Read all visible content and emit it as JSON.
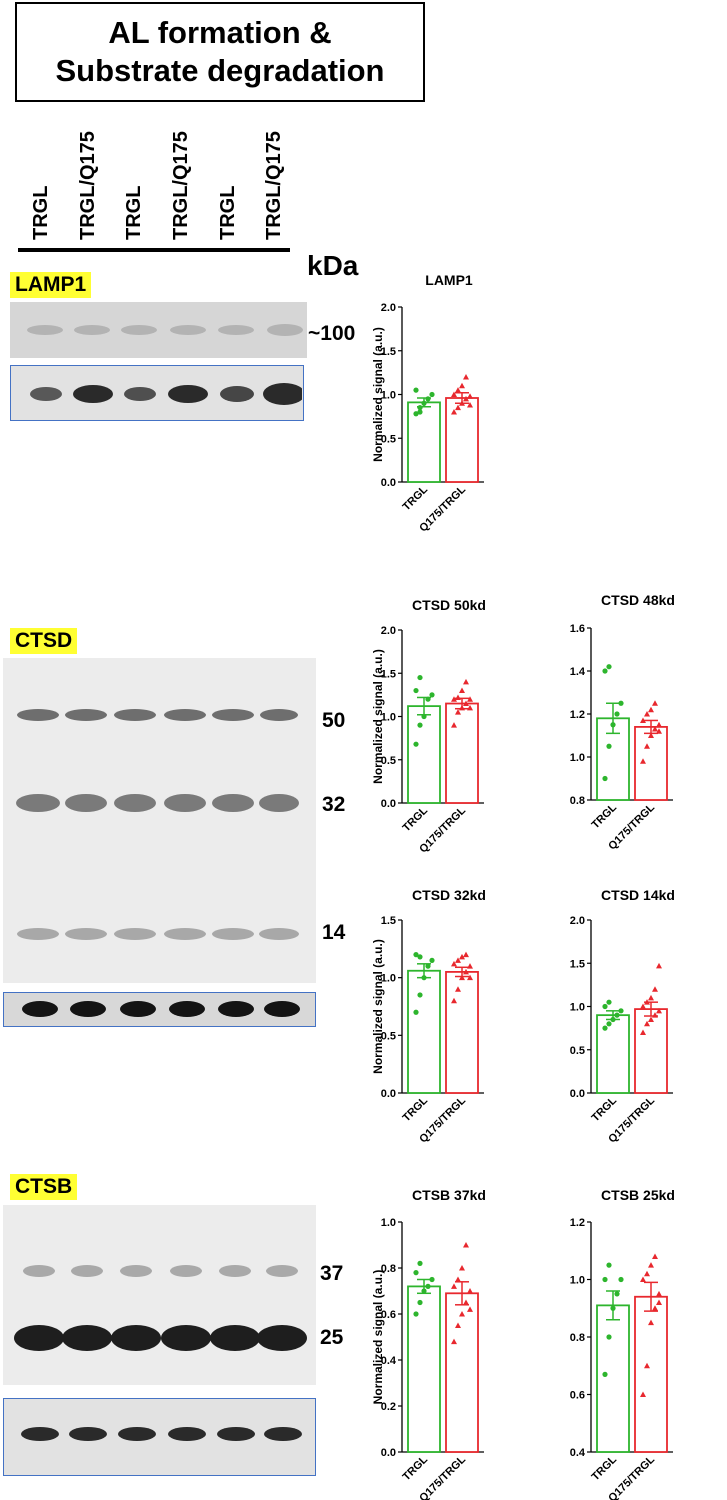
{
  "figure": {
    "title_line1": "AL formation &",
    "title_line2": "Substrate degradation",
    "lanes": [
      "TRGL",
      "TRGL/Q175",
      "TRGL",
      "TRGL/Q175",
      "TRGL",
      "TRGL/Q175"
    ],
    "kda_label": "kDa",
    "colors": {
      "trgl": "#2db52d",
      "q175": "#e8282e",
      "highlight": "#ffff33",
      "loading_border": "#4472c4"
    },
    "blots": {
      "lamp1": {
        "label": "LAMP1",
        "marker": "~100"
      },
      "ctsd": {
        "label": "CTSD",
        "markers": [
          "50",
          "32",
          "14"
        ]
      },
      "ctsb": {
        "label": "CTSB",
        "markers": [
          "37",
          "25"
        ]
      }
    }
  },
  "chart_data": [
    {
      "type": "bar",
      "title": "LAMP1",
      "ylabel": "Normalized signal  (a.u.)",
      "categories": [
        "TRGL",
        "Q175/TRGL"
      ],
      "ylim": [
        0,
        2
      ],
      "yticks": [
        "0.0",
        "0.5",
        "1.0",
        "1.5",
        "2.0"
      ],
      "values": [
        0.91,
        0.96
      ],
      "sem": [
        0.05,
        0.06
      ],
      "points": [
        [
          0.78,
          0.85,
          0.9,
          0.95,
          1.0,
          1.05,
          0.8
        ],
        [
          0.8,
          0.85,
          0.9,
          0.95,
          0.98,
          1.0,
          1.05,
          1.1,
          1.2,
          0.88
        ]
      ]
    },
    {
      "type": "bar",
      "title": "CTSD 50kd",
      "ylabel": "Normalized signal  (a.u.)",
      "categories": [
        "TRGL",
        "Q175/TRGL"
      ],
      "ylim": [
        0,
        2
      ],
      "yticks": [
        "0.0",
        "0.5",
        "1.0",
        "1.5",
        "2.0"
      ],
      "values": [
        1.12,
        1.15
      ],
      "sem": [
        0.1,
        0.06
      ],
      "points": [
        [
          0.68,
          0.9,
          1.0,
          1.2,
          1.25,
          1.3,
          1.45
        ],
        [
          0.9,
          1.05,
          1.1,
          1.15,
          1.2,
          1.2,
          1.22,
          1.3,
          1.4,
          1.1
        ]
      ]
    },
    {
      "type": "bar",
      "title": "CTSD 48kd",
      "ylabel": "",
      "categories": [
        "TRGL",
        "Q175/TRGL"
      ],
      "ylim": [
        0.8,
        1.6
      ],
      "yticks": [
        "0.8",
        "1.0",
        "1.2",
        "1.4",
        "1.6"
      ],
      "values": [
        1.18,
        1.14
      ],
      "sem": [
        0.07,
        0.03
      ],
      "points": [
        [
          0.9,
          1.05,
          1.15,
          1.2,
          1.25,
          1.4,
          1.42
        ],
        [
          0.98,
          1.05,
          1.1,
          1.13,
          1.15,
          1.17,
          1.2,
          1.22,
          1.25,
          1.12
        ]
      ]
    },
    {
      "type": "bar",
      "title": "CTSD 32kd",
      "ylabel": "Normalized signal  (a.u.)",
      "categories": [
        "TRGL",
        "Q175/TRGL"
      ],
      "ylim": [
        0,
        1.5
      ],
      "yticks": [
        "0.0",
        "0.5",
        "1.0",
        "1.5"
      ],
      "values": [
        1.06,
        1.05
      ],
      "sem": [
        0.06,
        0.04
      ],
      "points": [
        [
          0.7,
          0.85,
          1.0,
          1.1,
          1.15,
          1.2,
          1.18
        ],
        [
          0.8,
          0.9,
          1.0,
          1.05,
          1.1,
          1.12,
          1.15,
          1.18,
          1.2,
          1.0
        ]
      ]
    },
    {
      "type": "bar",
      "title": "CTSD 14kd",
      "ylabel": "",
      "categories": [
        "TRGL",
        "Q175/TRGL"
      ],
      "ylim": [
        0,
        2
      ],
      "yticks": [
        "0.0",
        "0.5",
        "1.0",
        "1.5",
        "2.0"
      ],
      "values": [
        0.9,
        0.97
      ],
      "sem": [
        0.05,
        0.08
      ],
      "points": [
        [
          0.75,
          0.8,
          0.85,
          0.9,
          0.95,
          1.0,
          1.05
        ],
        [
          0.7,
          0.8,
          0.85,
          0.9,
          0.95,
          1.0,
          1.05,
          1.1,
          1.2,
          1.47
        ]
      ]
    },
    {
      "type": "bar",
      "title": "CTSB 37kd",
      "ylabel": "Normalized signal  (a.u.)",
      "categories": [
        "TRGL",
        "Q175/TRGL"
      ],
      "ylim": [
        0,
        1
      ],
      "yticks": [
        "0.0",
        "0.2",
        "0.4",
        "0.6",
        "0.8",
        "1.0"
      ],
      "values": [
        0.72,
        0.69
      ],
      "sem": [
        0.03,
        0.05
      ],
      "points": [
        [
          0.6,
          0.65,
          0.7,
          0.72,
          0.75,
          0.78,
          0.82
        ],
        [
          0.48,
          0.55,
          0.6,
          0.65,
          0.7,
          0.72,
          0.75,
          0.8,
          0.9,
          0.62
        ]
      ]
    },
    {
      "type": "bar",
      "title": "CTSB 25kd",
      "ylabel": "",
      "categories": [
        "TRGL",
        "Q175/TRGL"
      ],
      "ylim": [
        0.4,
        1.2
      ],
      "yticks": [
        "0.4",
        "0.6",
        "0.8",
        "1.0",
        "1.2"
      ],
      "values": [
        0.91,
        0.94
      ],
      "sem": [
        0.05,
        0.05
      ],
      "points": [
        [
          0.67,
          0.8,
          0.9,
          0.95,
          1.0,
          1.0,
          1.05
        ],
        [
          0.6,
          0.7,
          0.85,
          0.9,
          0.95,
          1.0,
          1.02,
          1.05,
          1.08,
          0.92
        ]
      ]
    }
  ]
}
